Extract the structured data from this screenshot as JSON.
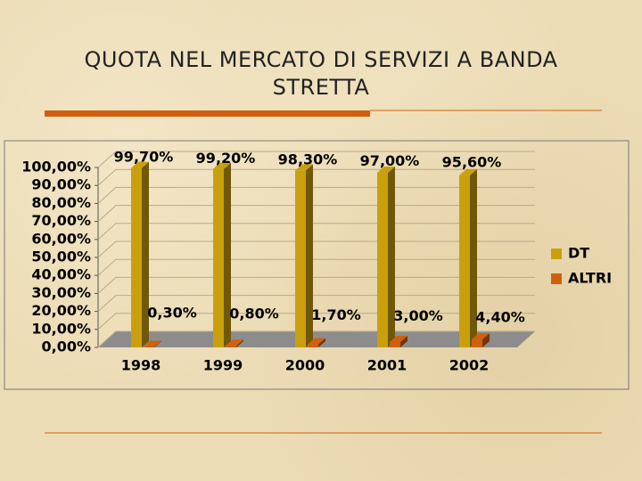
{
  "chart_data": {
    "type": "bar",
    "title": "QUOTA NEL MERCATO DI SERVIZI A BANDA STRETTA",
    "categories": [
      "1998",
      "1999",
      "2000",
      "2001",
      "2002"
    ],
    "series": [
      {
        "name": "DT",
        "color": "#c9a00c",
        "values": [
          99.7,
          99.2,
          98.3,
          97.0,
          95.6
        ],
        "value_labels": [
          "99,70%",
          "99,20%",
          "98,30%",
          "97,00%",
          "95,60%"
        ]
      },
      {
        "name": "ALTRI",
        "color": "#d0600e",
        "values": [
          0.3,
          0.8,
          1.7,
          3.0,
          4.4
        ],
        "value_labels": [
          "0,30%",
          "0,80%",
          "1,70%",
          "3,00%",
          "4,40%"
        ]
      }
    ],
    "ylim": [
      0,
      100
    ],
    "yticks": [
      {
        "value": 0,
        "label": "0,00%"
      },
      {
        "value": 10,
        "label": "10,00%"
      },
      {
        "value": 20,
        "label": "20,00%"
      },
      {
        "value": 30,
        "label": "30,00%"
      },
      {
        "value": 40,
        "label": "40,00%"
      },
      {
        "value": 50,
        "label": "50,00%"
      },
      {
        "value": 60,
        "label": "60,00%"
      },
      {
        "value": 70,
        "label": "70,00%"
      },
      {
        "value": 80,
        "label": "80,00%"
      },
      {
        "value": 90,
        "label": "90,00%"
      },
      {
        "value": 100,
        "label": "100,00%"
      }
    ],
    "grid": true,
    "legend": "right"
  }
}
